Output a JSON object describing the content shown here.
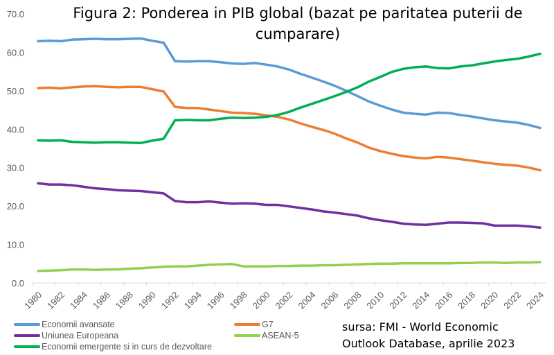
{
  "chart_data": {
    "type": "line",
    "title": "Figura 2: Ponderea in PIB global (bazat pe paritatea puterii de cumparare)",
    "xlabel": "",
    "ylabel": "",
    "ylim": [
      0,
      70
    ],
    "yticks": [
      "0.0",
      "10.0",
      "20.0",
      "30.0",
      "40.0",
      "50.0",
      "60.0",
      "70.0"
    ],
    "xticks": [
      "1980",
      "1982",
      "1984",
      "1986",
      "1988",
      "1990",
      "1992",
      "1994",
      "1996",
      "1998",
      "2000",
      "2002",
      "2004",
      "2006",
      "2008",
      "2010",
      "2012",
      "2014",
      "2016",
      "2018",
      "2020",
      "2022",
      "2024"
    ],
    "x": [
      1980,
      1981,
      1982,
      1983,
      1984,
      1985,
      1986,
      1987,
      1988,
      1989,
      1990,
      1991,
      1992,
      1993,
      1994,
      1995,
      1996,
      1997,
      1998,
      1999,
      2000,
      2001,
      2002,
      2003,
      2004,
      2005,
      2006,
      2007,
      2008,
      2009,
      2010,
      2011,
      2012,
      2013,
      2014,
      2015,
      2016,
      2017,
      2018,
      2019,
      2020,
      2021,
      2022,
      2023,
      2024
    ],
    "grid": false,
    "legend_position": "bottom",
    "series": [
      {
        "name": "Economii avansate",
        "color": "#5B9BD5",
        "values": [
          62.9,
          63.0,
          62.9,
          63.3,
          63.4,
          63.5,
          63.4,
          63.4,
          63.5,
          63.6,
          63.0,
          62.5,
          57.7,
          57.6,
          57.7,
          57.7,
          57.4,
          57.1,
          57.0,
          57.2,
          56.8,
          56.3,
          55.5,
          54.4,
          53.4,
          52.4,
          51.3,
          50.0,
          48.6,
          47.2,
          46.1,
          45.1,
          44.3,
          44.0,
          43.8,
          44.3,
          44.2,
          43.7,
          43.3,
          42.8,
          42.3,
          42.0,
          41.7,
          41.1,
          40.3
        ]
      },
      {
        "name": "G7",
        "color": "#ED7D31",
        "values": [
          50.7,
          50.8,
          50.6,
          50.9,
          51.1,
          51.2,
          51.0,
          50.9,
          51.0,
          51.0,
          50.4,
          49.8,
          45.8,
          45.5,
          45.5,
          45.1,
          44.7,
          44.3,
          44.2,
          44.0,
          43.6,
          43.2,
          42.5,
          41.5,
          40.6,
          39.8,
          38.8,
          37.6,
          36.5,
          35.2,
          34.3,
          33.6,
          33.0,
          32.6,
          32.4,
          32.8,
          32.6,
          32.2,
          31.8,
          31.4,
          31.0,
          30.7,
          30.5,
          30.0,
          29.3
        ]
      },
      {
        "name": "Uniunea Europeana",
        "color": "#7030A0",
        "values": [
          25.9,
          25.6,
          25.6,
          25.4,
          25.0,
          24.6,
          24.4,
          24.1,
          24.0,
          23.9,
          23.6,
          23.3,
          21.3,
          21.0,
          21.0,
          21.2,
          20.9,
          20.6,
          20.7,
          20.6,
          20.3,
          20.3,
          19.9,
          19.5,
          19.1,
          18.6,
          18.3,
          17.9,
          17.5,
          16.8,
          16.3,
          15.9,
          15.4,
          15.2,
          15.1,
          15.4,
          15.7,
          15.7,
          15.6,
          15.5,
          14.9,
          14.9,
          14.9,
          14.7,
          14.4
        ]
      },
      {
        "name": "ASEAN-5",
        "color": "#92D050",
        "values": [
          3.1,
          3.2,
          3.3,
          3.5,
          3.5,
          3.4,
          3.5,
          3.5,
          3.7,
          3.8,
          4.0,
          4.2,
          4.3,
          4.3,
          4.5,
          4.7,
          4.8,
          4.9,
          4.3,
          4.3,
          4.3,
          4.4,
          4.4,
          4.5,
          4.5,
          4.6,
          4.6,
          4.7,
          4.8,
          4.9,
          5.0,
          5.0,
          5.1,
          5.1,
          5.1,
          5.1,
          5.1,
          5.2,
          5.2,
          5.3,
          5.3,
          5.2,
          5.3,
          5.3,
          5.4
        ]
      },
      {
        "name": "Economii emergente si in curs de dezvoltare",
        "color": "#00B050",
        "values": [
          37.1,
          37.0,
          37.1,
          36.7,
          36.6,
          36.5,
          36.6,
          36.6,
          36.5,
          36.4,
          37.0,
          37.5,
          42.3,
          42.4,
          42.3,
          42.3,
          42.7,
          43.0,
          42.9,
          43.0,
          43.2,
          43.7,
          44.5,
          45.6,
          46.6,
          47.6,
          48.6,
          49.7,
          50.9,
          52.4,
          53.6,
          54.9,
          55.7,
          56.1,
          56.3,
          55.9,
          55.8,
          56.3,
          56.6,
          57.1,
          57.6,
          58.0,
          58.3,
          58.9,
          59.6
        ]
      }
    ]
  },
  "legend": [
    {
      "label": "Economii avansate",
      "color": "#5B9BD5"
    },
    {
      "label": "G7",
      "color": "#ED7D31"
    },
    {
      "label": "Uniunea Europeana",
      "color": "#7030A0"
    },
    {
      "label": "ASEAN-5",
      "color": "#92D050"
    },
    {
      "label": "Economii emergente si in curs de dezvoltare",
      "color": "#00B050"
    }
  ],
  "title_line1": "Figura 2: Ponderea in PIB global (bazat pe paritatea puterii de",
  "title_line2": "cumparare)",
  "source_line1": "sursa: FMI - World Economic",
  "source_line2": "Outlook Database, aprilie 2023"
}
